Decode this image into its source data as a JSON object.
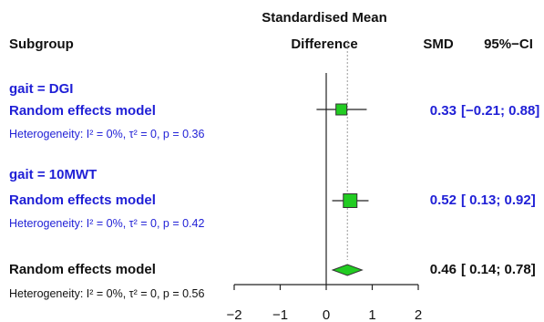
{
  "chart_data": {
    "type": "forest",
    "headers": {
      "subgroup": "Subgroup",
      "effect_line1": "Standardised Mean",
      "effect_line2": "Difference",
      "smd": "SMD",
      "ci": "95%−CI"
    },
    "xlim": [
      -2,
      2
    ],
    "x_ticks": [
      "−2",
      "−1",
      "0",
      "1",
      "2"
    ],
    "x_tick_values": [
      -2,
      -1,
      0,
      1,
      2
    ],
    "colors": {
      "subgroup": "#1f1fd6",
      "overall": "#111111",
      "box": "#22cc22",
      "diamond": "#22cc22"
    },
    "subgroups": [
      {
        "title": "gait = DGI",
        "model_label": "Random effects model",
        "heterogeneity": "Heterogeneity: I² = 0%, τ² = 0, p = 0.36",
        "smd": 0.33,
        "lower": -0.21,
        "upper": 0.88,
        "smd_text": "0.33",
        "ci_text": "[−0.21; 0.88]"
      },
      {
        "title": "gait = 10MWT",
        "model_label": "Random effects model",
        "heterogeneity": "Heterogeneity: I² = 0%, τ² = 0, p = 0.42",
        "smd": 0.52,
        "lower": 0.13,
        "upper": 0.92,
        "smd_text": "0.52",
        "ci_text": "[ 0.13; 0.92]"
      }
    ],
    "overall": {
      "model_label": "Random effects model",
      "heterogeneity": "Heterogeneity: I² = 0%, τ² = 0, p = 0.56",
      "smd": 0.46,
      "lower": 0.14,
      "upper": 0.78,
      "smd_text": "0.46",
      "ci_text": "[ 0.14; 0.78]"
    }
  }
}
